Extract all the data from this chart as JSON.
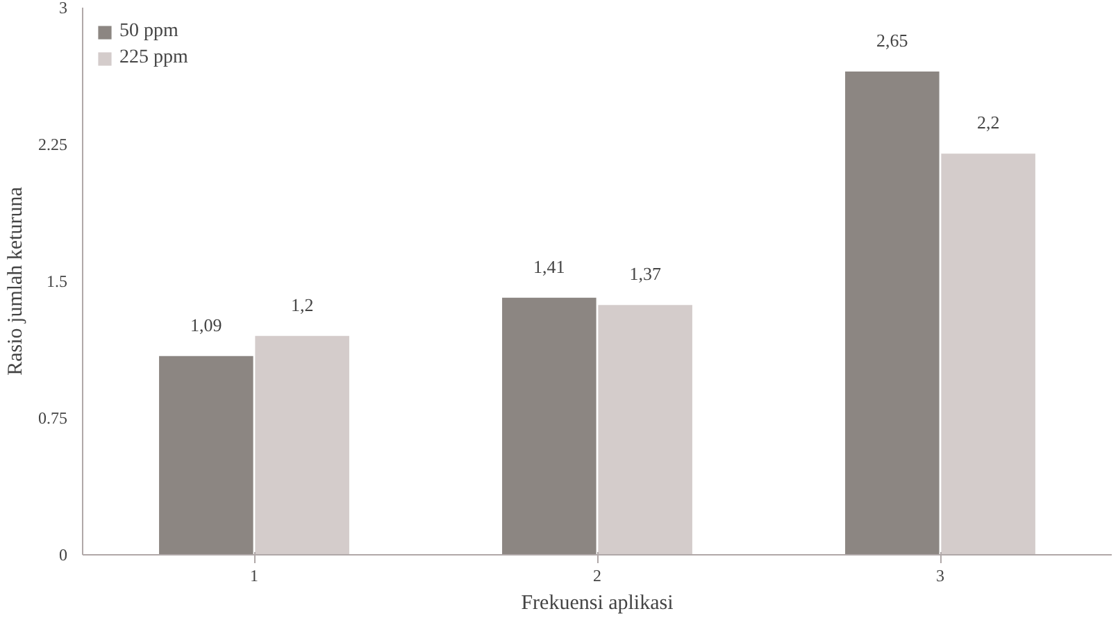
{
  "chart_data": {
    "type": "bar",
    "xlabel": "Frekuensi aplikasi",
    "ylabel": "Rasio jumlah keturuna",
    "categories": [
      "1",
      "2",
      "3"
    ],
    "series": [
      {
        "name": "50 ppm",
        "color": "#8c8682",
        "values": [
          1.09,
          1.41,
          2.65
        ],
        "value_labels": [
          "1,09",
          "1,41",
          "2,65"
        ]
      },
      {
        "name": "225 ppm",
        "color": "#d4cccb",
        "values": [
          1.2,
          1.37,
          2.2
        ],
        "value_labels": [
          "1,2",
          "1,37",
          "2,2"
        ]
      }
    ],
    "ylim": [
      0,
      3
    ],
    "yticks": [
      0,
      0.75,
      1.5,
      2.25,
      3
    ],
    "grid": false,
    "legend": "top left"
  }
}
